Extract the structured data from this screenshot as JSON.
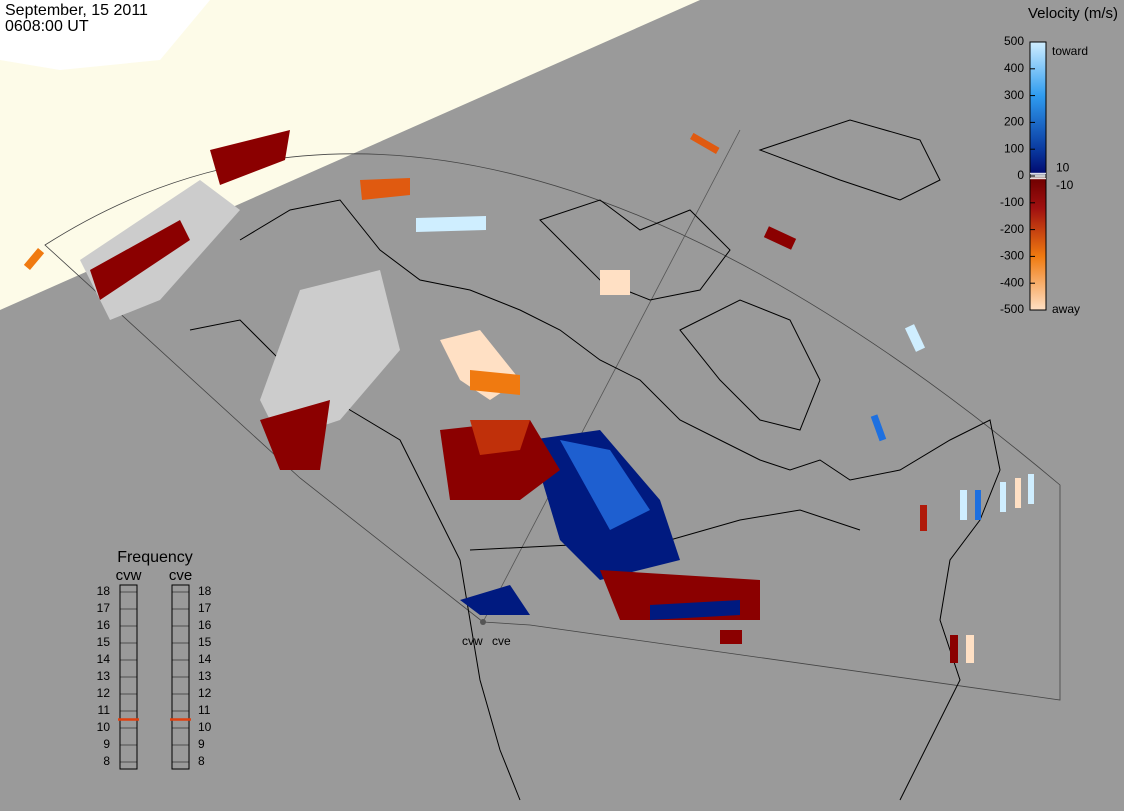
{
  "header": {
    "date": "September, 15 2011",
    "time": "0608:00 UT"
  },
  "velocity_scale": {
    "title": "Velocity (m/s)",
    "range": [
      -500,
      500
    ],
    "ticks": [
      500,
      400,
      300,
      200,
      100,
      0,
      -100,
      -200,
      -300,
      -400,
      -500
    ],
    "inner_ticks": [
      10,
      -10
    ],
    "toward": "toward",
    "away": "away"
  },
  "frequency": {
    "title": "Frequency",
    "range": [
      8,
      18
    ],
    "ticks": [
      18,
      17,
      16,
      15,
      14,
      13,
      12,
      11,
      10,
      9,
      8
    ],
    "radars": [
      {
        "name": "cvw",
        "value": 10.5
      },
      {
        "name": "cve",
        "value": 10.5
      }
    ]
  },
  "stations": [
    "cvw",
    "cve"
  ]
}
